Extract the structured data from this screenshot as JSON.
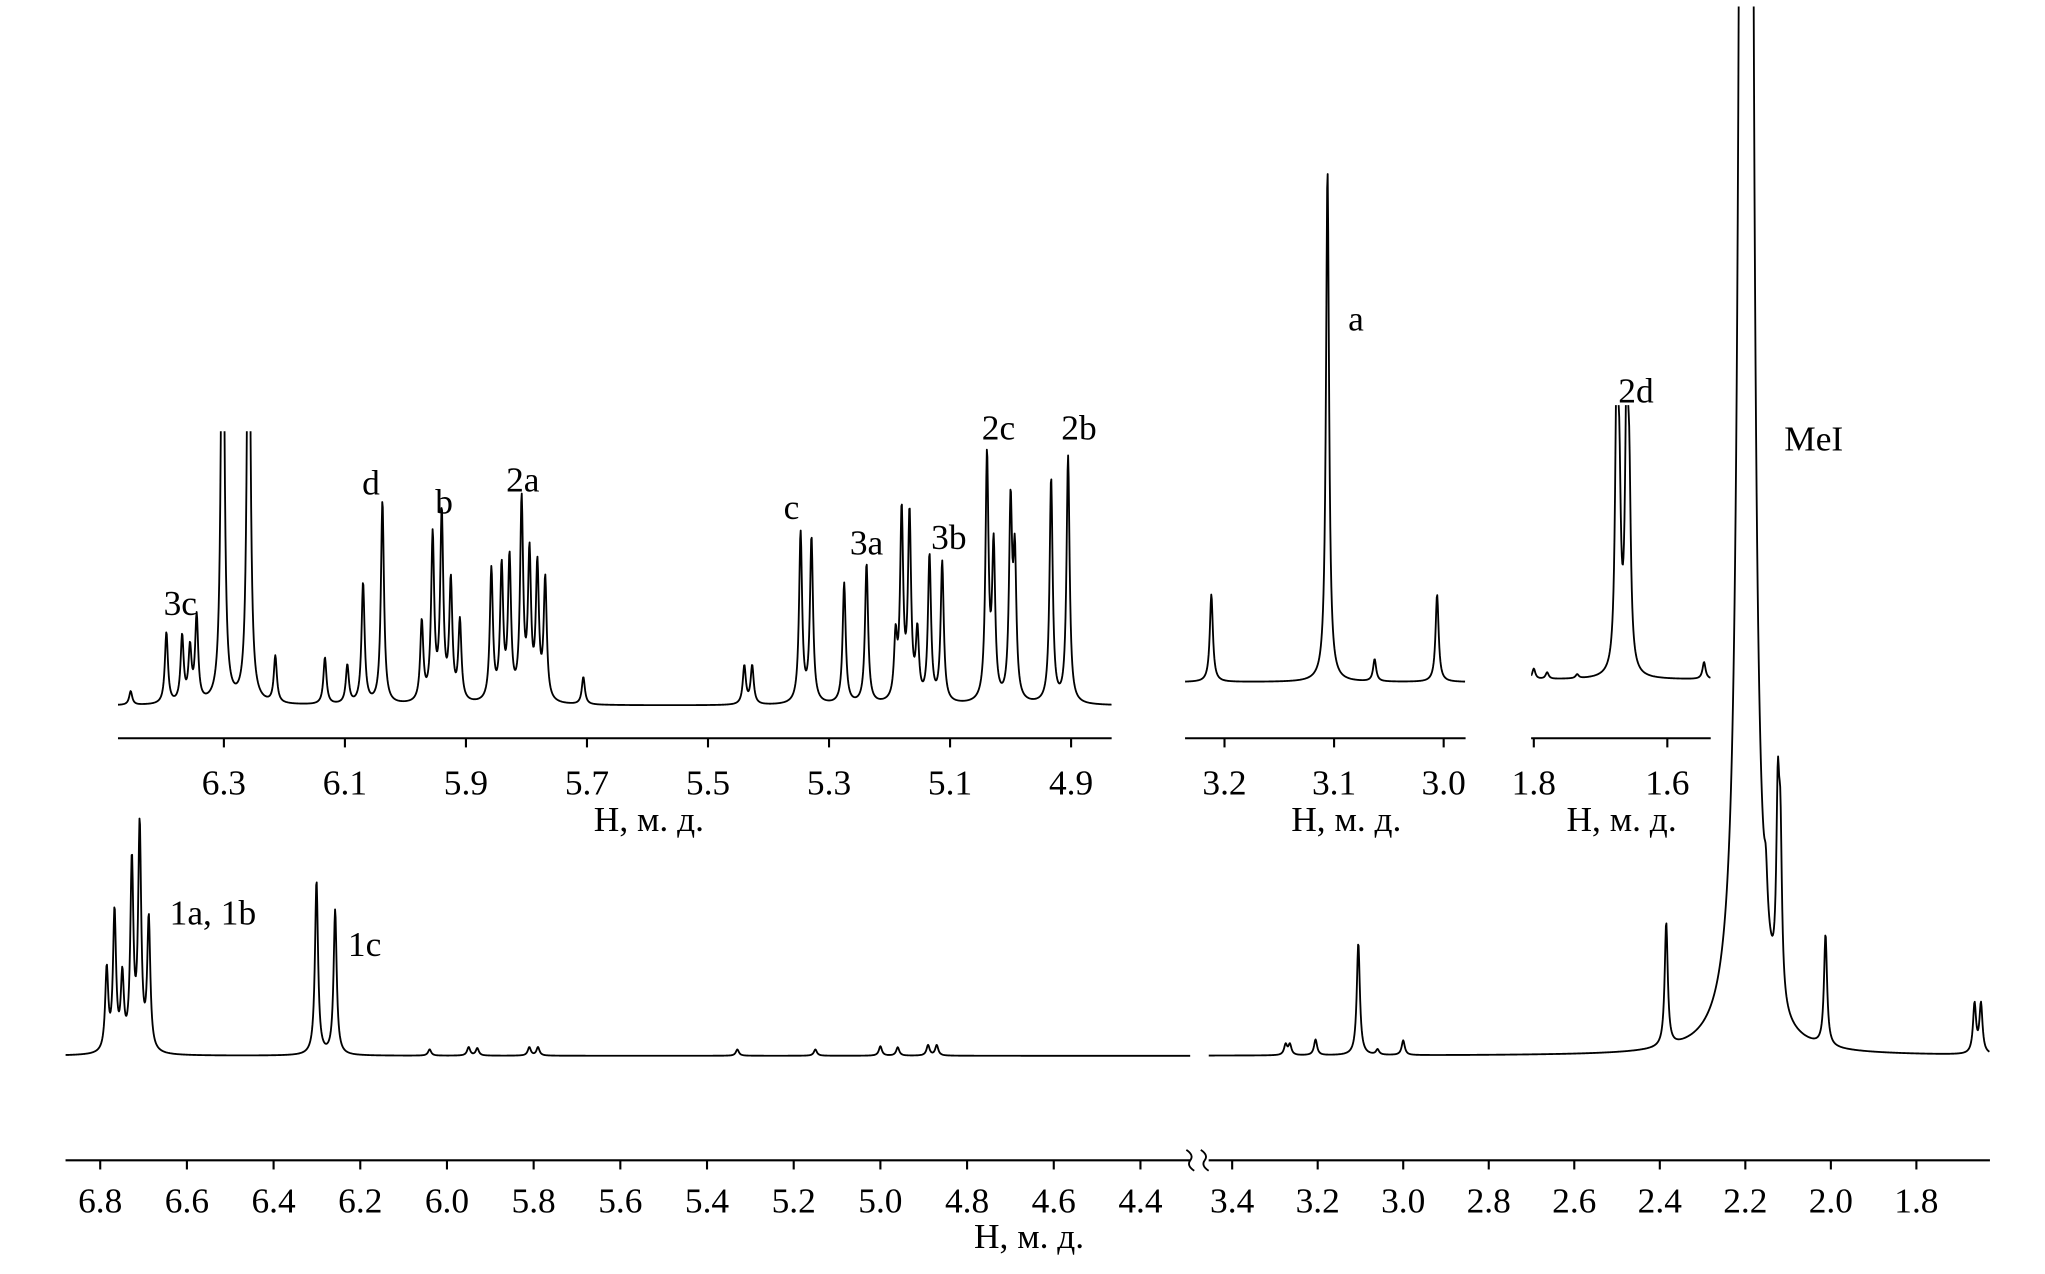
{
  "chart_data": [
    {
      "type": "spectrum",
      "xlabel": "H, м. д.",
      "ylim": [
        0,
        100
      ],
      "segments": [
        {
          "xlim": [
            6.88,
            4.285
          ],
          "xticks": [
            6.8,
            6.6,
            6.4,
            6.2,
            {
              "value": 6,
              "label": "6.0"
            },
            5.8,
            5.6,
            5.4,
            5.2,
            {
              "value": 5,
              "label": "5.0"
            },
            4.8,
            4.6,
            4.4
          ],
          "peaks": {
            "x": [
              6.785,
              6.767,
              6.749,
              6.727,
              6.709,
              6.688,
              6.301,
              6.258,
              6.04,
              5.95,
              5.93,
              5.81,
              5.79,
              5.33,
              5.15,
              5.0,
              4.96,
              4.89,
              4.87
            ],
            "values": [
              7.8,
              13.2,
              6.8,
              17.8,
              21.2,
              12.5,
              16.6,
              13.8,
              0.6,
              0.8,
              0.7,
              0.8,
              0.8,
              0.6,
              0.6,
              0.9,
              0.8,
              1,
              1
            ]
          },
          "annotations": [
            {
              "text": "1a, 1b",
              "x": 6.54,
              "y": 12.5
            },
            {
              "text": "1c",
              "x": 6.19,
              "y": 9.5
            }
          ]
        },
        {
          "xlim": [
            3.455,
            1.628
          ],
          "xticks": [
            3.4,
            3.2,
            {
              "value": 3,
              "label": "3.0"
            },
            2.8,
            2.6,
            2.4,
            2.2,
            {
              "value": 2,
              "label": "2.0"
            },
            1.8
          ],
          "peaks": {
            "x": [
              3.275,
              3.265,
              3.205,
              3.105,
              3.06,
              3.0,
              2.385,
              2.198,
              2.152,
              2.124,
              2.118,
              2.0125,
              1.664,
              1.649
            ],
            "values": [
              1,
              1,
              1.5,
              10.7,
              0.5,
              1.4,
              11.8,
              1770,
              4,
              17.5,
              14,
              10.6,
              4.7,
              4.7
            ]
          },
          "annotations": [
            {
              "text": "MeI",
              "x": 2.04,
              "y": 57.7
            }
          ]
        }
      ]
    },
    {
      "type": "spectrum",
      "xlabel": "H, м. д.",
      "xlim": [
        6.475,
        4.833
      ],
      "ylim": [
        0,
        100
      ],
      "xticks": [
        6.3,
        6.1,
        5.9,
        5.7,
        5.5,
        5.3,
        5.1,
        4.9
      ],
      "peaks": {
        "x": [
          6.454,
          6.395,
          6.369,
          6.356,
          6.345,
          6.302,
          6.259,
          6.215,
          6.133,
          6.096,
          6.07,
          6.038,
          5.973,
          5.955,
          5.94,
          5.925,
          5.91,
          5.858,
          5.841,
          5.828,
          5.808,
          5.795,
          5.782,
          5.769,
          5.706,
          5.44,
          5.427,
          5.347,
          5.329,
          5.275,
          5.238,
          5.19,
          5.18,
          5.167,
          5.154,
          5.134,
          5.113,
          5.039,
          5.028,
          5.0,
          4.993,
          4.933,
          4.905
        ],
        "values": [
          5,
          26,
          24,
          19,
          31,
          200,
          200,
          17,
          17,
          14,
          44,
          74,
          29,
          60,
          68,
          43,
          29,
          48,
          48,
          51,
          72,
          52,
          48,
          44,
          10,
          14,
          14,
          62,
          60,
          44,
          51,
          22,
          68,
          67,
          24,
          53,
          51,
          89,
          55,
          70,
          50,
          82,
          90
        ]
      },
      "annotations": [
        {
          "text": "3c",
          "x": 6.372,
          "y": 33
        },
        {
          "text": "d",
          "x": 6.057,
          "y": 77
        },
        {
          "text": "b",
          "x": 5.936,
          "y": 70
        },
        {
          "text": "2a",
          "x": 5.806,
          "y": 78
        },
        {
          "text": "c",
          "x": 5.362,
          "y": 68
        },
        {
          "text": "3a",
          "x": 5.238,
          "y": 55
        },
        {
          "text": "3b",
          "x": 5.102,
          "y": 57
        },
        {
          "text": "2c",
          "x": 5.02,
          "y": 97
        },
        {
          "text": "2b",
          "x": 4.887,
          "y": 97
        }
      ]
    },
    {
      "type": "spectrum",
      "xlabel": "H, м. д.",
      "xlim": [
        3.236,
        2.98
      ],
      "ylim": [
        0,
        400
      ],
      "xticks": [
        3.2,
        3.1,
        {
          "value": 3,
          "label": "3.0"
        }
      ],
      "peaks": {
        "x": [
          3.212,
          3.106,
          3.063,
          3.006
        ],
        "values": [
          67,
          392,
          17,
          67
        ]
      },
      "annotations": [
        {
          "text": "a",
          "x": 3.08,
          "y": 269
        }
      ]
    },
    {
      "type": "spectrum",
      "xlabel": "H, м. д.",
      "xlim": [
        1.804,
        1.535
      ],
      "ylim": [
        0,
        210
      ],
      "xticks": [
        1.8,
        1.6
      ],
      "peaks": {
        "x": [
          1.8,
          1.78,
          1.735,
          1.676,
          1.672,
          1.661,
          1.657,
          1.545
        ],
        "values": [
          8,
          5,
          3,
          200,
          120,
          197,
          120,
          13
        ]
      },
      "annotations": [
        {
          "text": "2d",
          "x": 1.647,
          "y": 212
        }
      ]
    }
  ]
}
